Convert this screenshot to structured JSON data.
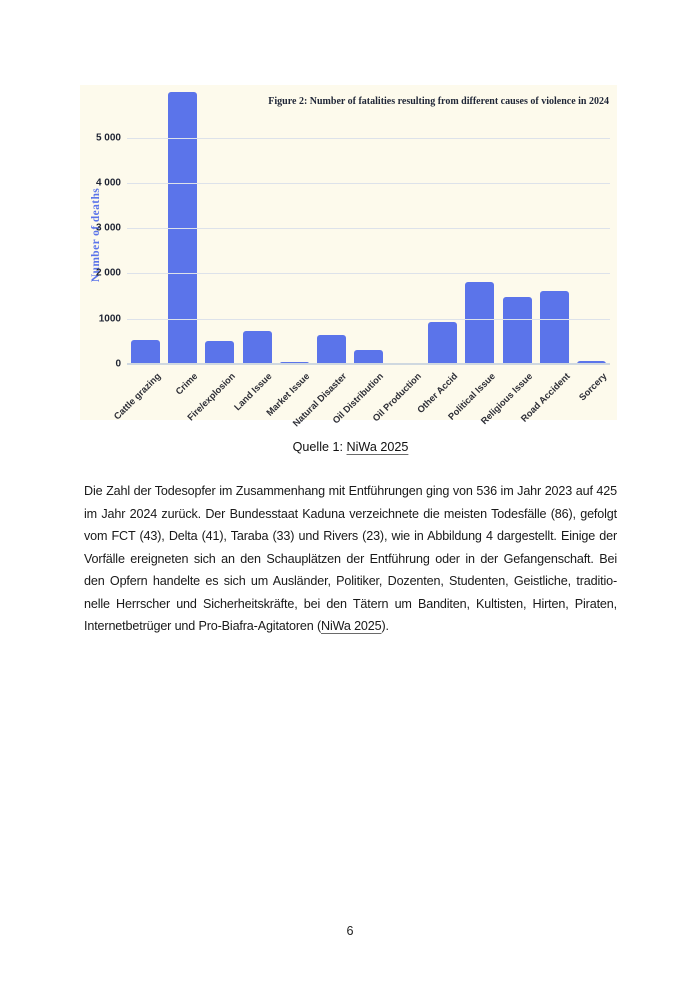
{
  "page": {
    "number": "6",
    "caption": {
      "prefix": "Quelle 1: ",
      "source": "NiWa 2025"
    }
  },
  "chart_data": {
    "type": "bar",
    "title": "Figure 2: Number of fatalities resulting from different causes of violence in 2024",
    "xlabel": "",
    "ylabel": "Number of deaths",
    "categories": [
      "Cattle grazing",
      "Crime",
      "Fire/explosion",
      "Land Issue",
      "Market Issue",
      "Natural Disaster",
      "Oil Distribution",
      "Oil Production",
      "Other Accid",
      "Political Issue",
      "Religious Issue",
      "Road Accident",
      "Sorcery"
    ],
    "values": [
      530,
      6000,
      510,
      730,
      35,
      650,
      300,
      30,
      930,
      1800,
      1470,
      1620,
      75
    ],
    "ylim": [
      0,
      6160
    ],
    "yticks": [
      0,
      1000,
      2000,
      3000,
      4000,
      5000
    ],
    "ytick_labels": [
      "0",
      "1000",
      "2 000",
      "3 000",
      "4 000",
      "5 000"
    ],
    "grid": true,
    "legend": false,
    "colors": {
      "bar": "#5b74ea",
      "plot_background": "#fdfaec",
      "gridline": "#dde2ea",
      "axis_line": "#cfd8e0",
      "title_text": "#1f2637",
      "tick_text": "#1f2433",
      "category_text": "#2d2e36",
      "ylabel_text": "#5b74ea"
    }
  },
  "paragraph": {
    "lines": [
      "Die Zahl der Todesopfer im Zusammenhang mit Entführungen ging von 536 im Jahr 2023 auf 425",
      "im Jahr 2024 zurück. Der Bundesstaat Kaduna verzeichnete die meisten Todesfälle (86), gefolgt",
      "vom FCT (43), Delta (41), Taraba (33) und Rivers (23), wie in Abbildung 4 dargestellt. Einige der",
      "Vorfälle ereigneten sich an den Schauplätzen der Entführung oder in der Gefangenschaft. Bei",
      "den Opfern handelte es sich um Ausländer, Politiker, Dozenten, Studenten, Geistliche, traditio-",
      "nelle Herrscher und Sicherheitskräfte, bei den Tätern um Banditen, Kultisten, Hirten, Piraten,"
    ],
    "last_line": {
      "pre": "Internetbetrüger und Pro-Biafra-Agitatoren (",
      "link": "NiWa 2025",
      "post": ")."
    }
  }
}
